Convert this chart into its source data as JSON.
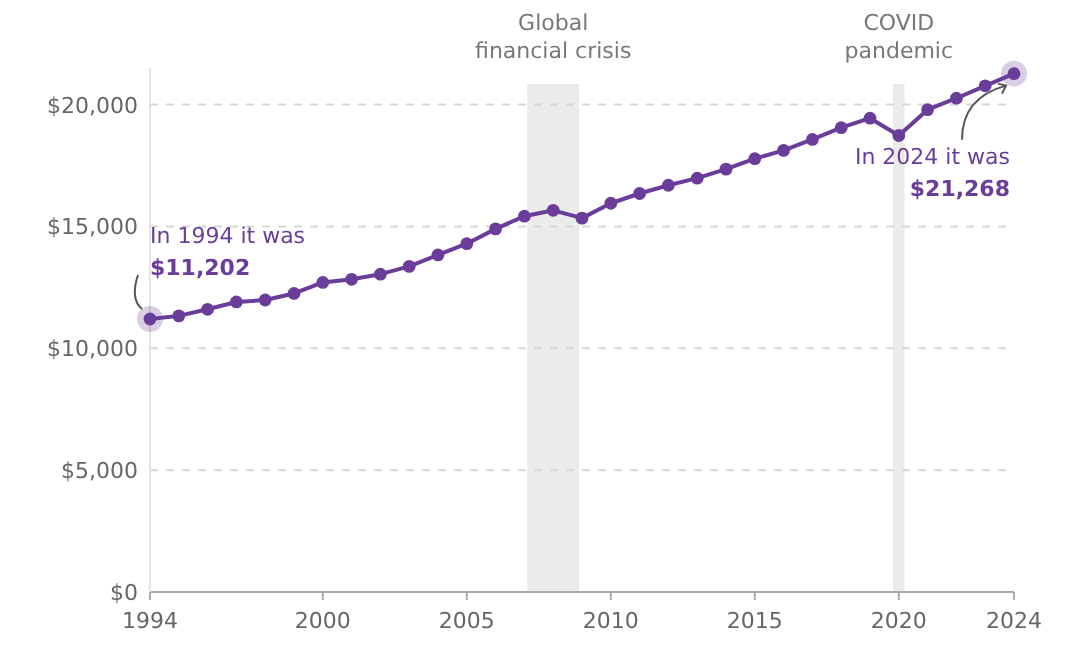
{
  "chart_data": {
    "type": "line",
    "x": [
      1994,
      1995,
      1996,
      1997,
      1998,
      1999,
      2000,
      2001,
      2002,
      2003,
      2004,
      2005,
      2006,
      2007,
      2008,
      2009,
      2010,
      2011,
      2012,
      2013,
      2014,
      2015,
      2016,
      2017,
      2018,
      2019,
      2020,
      2021,
      2022,
      2023,
      2024
    ],
    "series": [
      {
        "color": "#6a3d9a",
        "values": [
          11202,
          11330,
          11600,
          11900,
          11980,
          12250,
          12700,
          12830,
          13040,
          13360,
          13830,
          14290,
          14900,
          15420,
          15660,
          15340,
          15950,
          16350,
          16690,
          16980,
          17350,
          17780,
          18120,
          18570,
          19050,
          19440,
          18730,
          19790,
          20260,
          20770,
          21268
        ]
      }
    ],
    "xlim": [
      1994,
      2024
    ],
    "xticks": [
      1994,
      2000,
      2005,
      2010,
      2015,
      2020,
      2024
    ],
    "ylim": [
      0,
      21500
    ],
    "yticks": [
      {
        "value": 0,
        "label": "$0"
      },
      {
        "value": 5000,
        "label": "$5,000"
      },
      {
        "value": 10000,
        "label": "$10,000"
      },
      {
        "value": 15000,
        "label": "$15,000"
      },
      {
        "value": 20000,
        "label": "$20,000"
      }
    ],
    "grid": "y",
    "marker": "circle",
    "line_style": "solid",
    "bands": [
      {
        "axis": "x",
        "from": 2007.1,
        "to": 2008.9,
        "label": "Global\nfinancial crisis",
        "color": "#ebebeb"
      },
      {
        "axis": "x",
        "from": 2019.8,
        "to": 2020.2,
        "label": "COVID\npandemic",
        "color": "#ebebeb"
      }
    ],
    "annotations": [
      {
        "text": "In 1994 it was\n$11,202",
        "x": 1994,
        "y": 11202
      },
      {
        "text": "In 2024 it was\n$21,268",
        "x": 2024,
        "y": 21268
      }
    ]
  }
}
